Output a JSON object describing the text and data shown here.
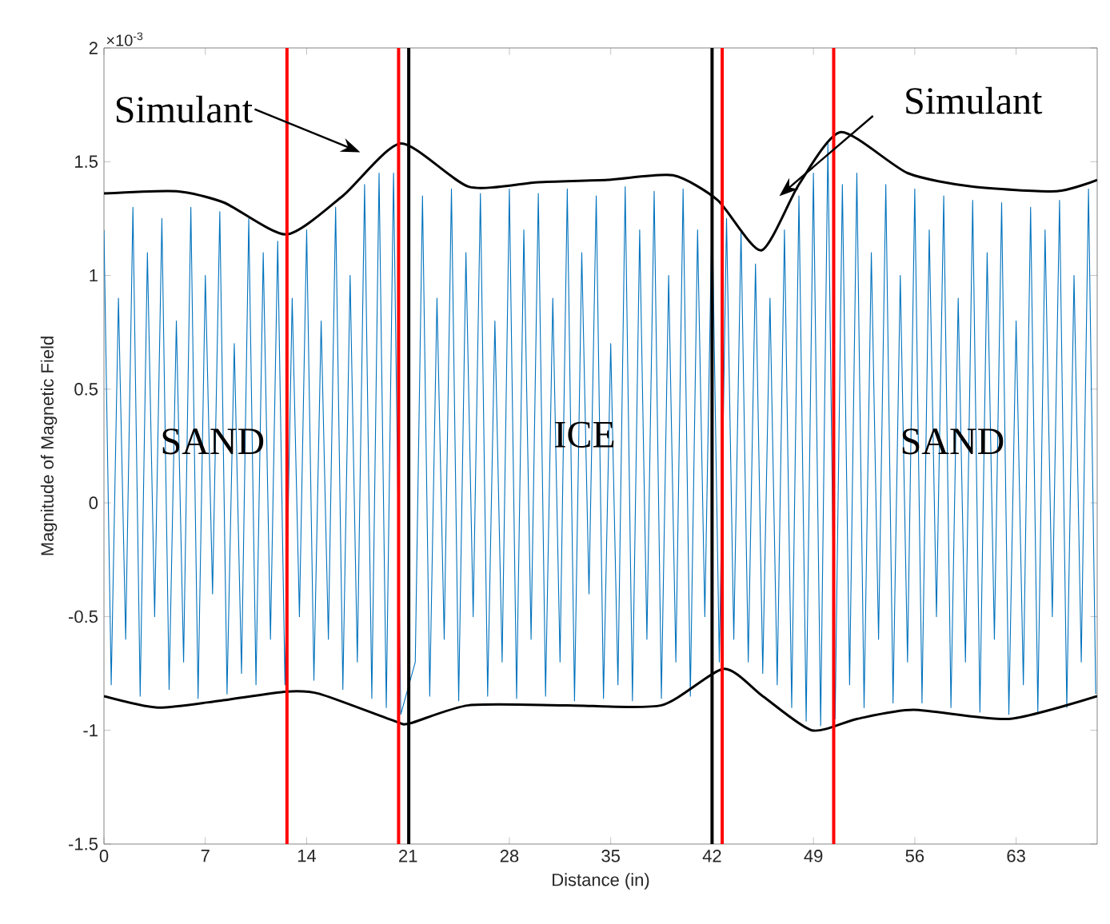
{
  "chart_data": {
    "type": "line",
    "xlabel": "Distance (in)",
    "ylabel": "Magnitude of Magnetic Field",
    "xlim": [
      0,
      68.6
    ],
    "ylim": [
      -1.5,
      2
    ],
    "xticks": [
      0,
      7,
      14,
      21,
      28,
      35,
      42,
      49,
      56,
      63
    ],
    "yticks": [
      -1.5,
      -1,
      -0.5,
      0,
      0.5,
      1,
      1.5,
      2
    ],
    "grid": false,
    "series": [
      {
        "color": "#0072bd",
        "x": [
          0,
          0.5,
          1,
          1.5,
          2,
          2.5,
          3,
          3.5,
          4,
          4.5,
          5,
          5.5,
          6,
          6.5,
          7,
          7.5,
          8,
          8.5,
          9,
          9.5,
          10,
          10.5,
          11,
          11.5,
          12,
          12.5,
          13,
          13.5,
          14,
          14.5,
          15,
          15.5,
          16,
          16.5,
          17,
          17.5,
          18,
          18.5,
          19,
          19.5,
          20,
          20.5,
          21,
          21.5,
          22,
          22.5,
          23,
          23.5,
          24,
          24.5,
          25,
          25.5,
          26,
          26.5,
          27,
          27.5,
          28,
          28.5,
          29,
          29.5,
          30,
          30.5,
          31,
          31.5,
          32,
          32.5,
          33,
          33.5,
          34,
          34.5,
          35,
          35.5,
          36,
          36.5,
          37,
          37.5,
          38,
          38.5,
          39,
          39.5,
          40,
          40.5,
          41,
          41.5,
          42,
          42.5,
          43,
          43.5,
          44,
          44.5,
          45,
          45.5,
          46,
          46.5,
          47,
          47.5,
          48,
          48.5,
          49,
          49.5,
          50,
          50.5,
          51,
          51.5,
          52,
          52.5,
          53,
          53.5,
          54,
          54.5,
          55,
          55.5,
          56,
          56.5,
          57,
          57.5,
          58,
          58.5,
          59,
          59.5,
          60,
          60.5,
          61,
          61.5,
          62,
          62.5,
          63,
          63.5,
          64,
          64.5,
          65,
          65.5,
          66,
          66.5,
          67,
          67.5,
          68,
          68.5
        ],
        "values": [
          1.2,
          -0.8,
          0.9,
          -0.6,
          1.3,
          -0.85,
          1.1,
          -0.5,
          1.25,
          -0.82,
          0.8,
          -0.7,
          1.3,
          -0.86,
          1.0,
          -0.4,
          1.28,
          -0.84,
          0.7,
          -0.75,
          1.25,
          -0.8,
          1.1,
          -0.6,
          1.15,
          -0.8,
          0.9,
          -0.5,
          1.2,
          -0.78,
          0.8,
          -0.6,
          1.3,
          -0.82,
          1.0,
          -0.7,
          1.4,
          -0.86,
          1.45,
          -0.9,
          1.45,
          -0.93,
          null,
          -0.7,
          1.35,
          -0.85,
          0.9,
          -0.6,
          1.38,
          -0.87,
          1.1,
          -0.5,
          1.36,
          -0.85,
          0.8,
          -0.7,
          1.38,
          -0.86,
          1.2,
          -0.6,
          1.36,
          -0.85,
          0.9,
          -0.7,
          1.38,
          -0.87,
          1.1,
          -0.4,
          1.35,
          -0.86,
          0.7,
          -0.8,
          1.39,
          -0.87,
          1.2,
          -0.6,
          1.37,
          -0.86,
          1.0,
          -0.7,
          1.38,
          -0.85,
          1.2,
          -0.5,
          1.3,
          -0.7,
          1.25,
          -0.6,
          1.2,
          -0.7,
          1.05,
          -0.75,
          0.9,
          -0.8,
          1.2,
          -0.9,
          1.35,
          -0.96,
          1.45,
          -0.98,
          1.58,
          -0.95,
          1.4,
          -0.8,
          1.45,
          -0.9,
          1.1,
          -0.6,
          1.4,
          -0.88,
          1.0,
          -0.7,
          1.38,
          -0.88,
          1.2,
          -0.5,
          1.35,
          -0.9,
          0.9,
          -0.7,
          1.33,
          -0.92,
          1.1,
          -0.6,
          1.32,
          -0.93,
          0.8,
          -0.8,
          1.3,
          -0.92,
          1.2,
          -0.5,
          1.33,
          -0.9,
          1.0,
          -0.7,
          1.38,
          -0.84
        ]
      },
      {
        "color": "#000000",
        "x": [
          0,
          5,
          8.3,
          12.6,
          16.5,
          20.5,
          25.2,
          30,
          34.8,
          39.3,
          42.4,
          45.4,
          48,
          50.9,
          55.5,
          60,
          65.8,
          68.6
        ],
        "values": [
          1.36,
          1.37,
          1.32,
          1.18,
          1.35,
          1.58,
          1.39,
          1.41,
          1.42,
          1.44,
          1.33,
          1.11,
          1.4,
          1.63,
          1.45,
          1.39,
          1.37,
          1.42
        ]
      },
      {
        "color": "#000000",
        "x": [
          0,
          3.7,
          8,
          12.6,
          14.9,
          20.1,
          21.1,
          25.2,
          32,
          38.5,
          42.8,
          45.5,
          48.9,
          52,
          55.9,
          62.5,
          68.6
        ],
        "values": [
          -0.85,
          -0.9,
          -0.87,
          -0.83,
          -0.84,
          -0.96,
          -0.97,
          -0.89,
          -0.89,
          -0.89,
          -0.73,
          -0.85,
          -1.0,
          -0.95,
          -0.91,
          -0.95,
          -0.85
        ]
      }
    ],
    "ref_lines": [
      {
        "axis": "x",
        "value": 12.64,
        "color": "#ff0000"
      },
      {
        "axis": "x",
        "value": 20.35,
        "color": "#ff0000"
      },
      {
        "axis": "x",
        "value": 21.05,
        "color": "#000000"
      },
      {
        "axis": "x",
        "value": 42.0,
        "color": "#000000"
      },
      {
        "axis": "x",
        "value": 42.7,
        "color": "#ff0000"
      },
      {
        "axis": "x",
        "value": 50.4,
        "color": "#ff0000"
      }
    ],
    "annotations": [
      "×10$^{-3}$",
      "Simulant",
      "Simulant",
      {
        "text": "SAND",
        "x": 7.5,
        "y": 0.27
      },
      {
        "text": "ICE",
        "x": 33.2,
        "y": 0.3
      },
      {
        "text": "SAND",
        "x": 58.6,
        "y": 0.27
      }
    ]
  }
}
